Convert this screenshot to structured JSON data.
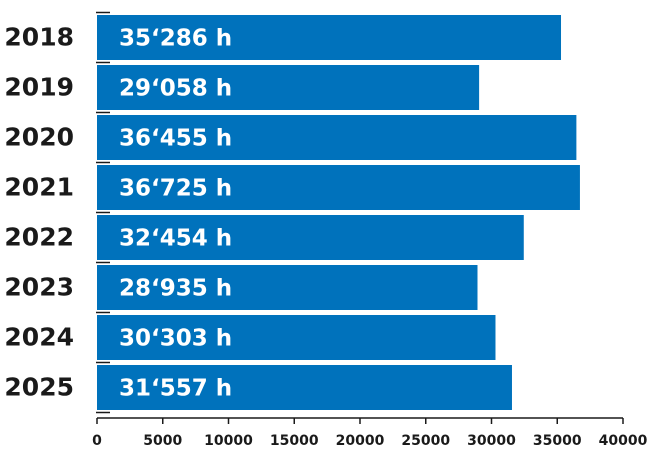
{
  "chart_data": {
    "type": "bar",
    "orientation": "horizontal",
    "categories": [
      "2018",
      "2019",
      "2020",
      "2021",
      "2022",
      "2023",
      "2024",
      "2025"
    ],
    "values": [
      35286,
      29058,
      36455,
      36725,
      32454,
      28935,
      30303,
      31557
    ],
    "data_labels": [
      "35‘286 h",
      "29‘058 h",
      "36‘455 h",
      "36‘725 h",
      "32‘454 h",
      "28‘935 h",
      "30‘303 h",
      "31‘557 h"
    ],
    "xlim": [
      0,
      40000
    ],
    "x_ticks": [
      0,
      5000,
      10000,
      15000,
      20000,
      25000,
      30000,
      35000,
      40000
    ],
    "x_tick_labels": [
      "0",
      "5000",
      "10000",
      "15000",
      "20000",
      "25000",
      "30000",
      "35000",
      "40000"
    ],
    "title": "",
    "xlabel": "",
    "ylabel": "",
    "grid": false,
    "legend": "none",
    "bar_color": "#0072BC",
    "label_color": "#FFFFFF",
    "text_color": "#1A1A1A"
  }
}
